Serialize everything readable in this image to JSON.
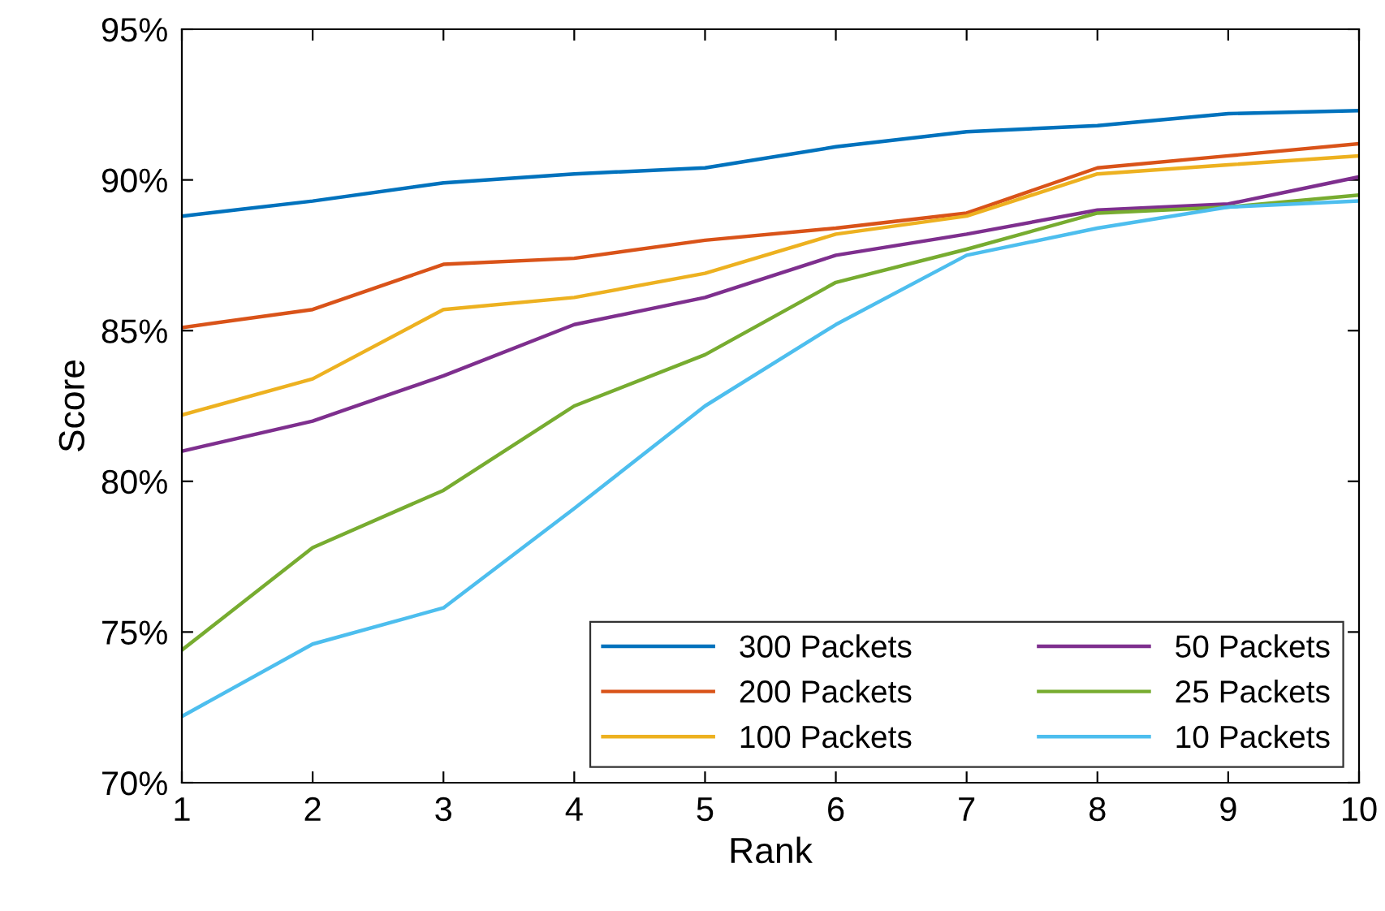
{
  "chart_data": {
    "type": "line",
    "xlabel": "Rank",
    "ylabel": "Score",
    "x": [
      1,
      2,
      3,
      4,
      5,
      6,
      7,
      8,
      9,
      10
    ],
    "series": [
      {
        "name": "300 Packets",
        "color": "#0072bd",
        "values": [
          88.8,
          89.3,
          89.9,
          90.2,
          90.4,
          91.1,
          91.6,
          91.8,
          92.2,
          92.3
        ]
      },
      {
        "name": "200 Packets",
        "color": "#d95319",
        "values": [
          85.1,
          85.7,
          87.2,
          87.4,
          88.0,
          88.4,
          88.9,
          90.4,
          90.8,
          91.2
        ]
      },
      {
        "name": "100 Packets",
        "color": "#edb120",
        "values": [
          82.2,
          83.4,
          85.7,
          86.1,
          86.9,
          88.2,
          88.8,
          90.2,
          90.5,
          90.8
        ]
      },
      {
        "name": "50 Packets",
        "color": "#7e2f8e",
        "values": [
          81.0,
          82.0,
          83.5,
          85.2,
          86.1,
          87.5,
          88.2,
          89.0,
          89.2,
          90.1
        ]
      },
      {
        "name": "25 Packets",
        "color": "#77ac30",
        "values": [
          74.4,
          77.8,
          79.7,
          82.5,
          84.2,
          86.6,
          87.7,
          88.9,
          89.1,
          89.5
        ]
      },
      {
        "name": "10 Packets",
        "color": "#4dbeee",
        "values": [
          72.2,
          74.6,
          75.8,
          79.1,
          82.5,
          85.2,
          87.5,
          88.4,
          89.1,
          89.3
        ]
      }
    ],
    "xlim": [
      1,
      10
    ],
    "xticks": [
      1,
      2,
      3,
      4,
      5,
      6,
      7,
      8,
      9,
      10
    ],
    "ylim": [
      70,
      95
    ],
    "yticks": [
      {
        "value": 70,
        "label": "70%"
      },
      {
        "value": 75,
        "label": "75%"
      },
      {
        "value": 80,
        "label": "80%"
      },
      {
        "value": 85,
        "label": "85%"
      },
      {
        "value": 90,
        "label": "90%"
      },
      {
        "value": 95,
        "label": "95%"
      }
    ],
    "legend": "bottom right",
    "line_style": "solid",
    "marker": "none"
  }
}
